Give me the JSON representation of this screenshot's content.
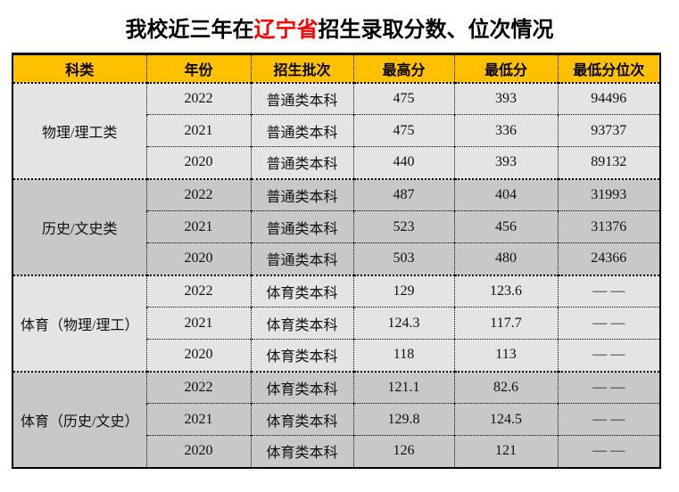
{
  "title": {
    "prefix": "我校近三年在",
    "highlight": "辽宁省",
    "suffix": "招生录取分数、位次情况"
  },
  "colors": {
    "header_bg": "#FFC000",
    "header_text": "#000000",
    "group_light_bg": "#E4E4E4",
    "group_dark_bg": "#C8C8C8",
    "border": "#000000",
    "title_highlight": "#FF0000"
  },
  "table": {
    "headers": [
      "科类",
      "年份",
      "招生批次",
      "最高分",
      "最低分",
      "最低分位次"
    ],
    "groups": [
      {
        "category": "物理/理工类",
        "rows": [
          {
            "year": "2022",
            "batch": "普通类本科",
            "max": "475",
            "min": "393",
            "rank": "94496"
          },
          {
            "year": "2021",
            "batch": "普通类本科",
            "max": "475",
            "min": "336",
            "rank": "93737"
          },
          {
            "year": "2020",
            "batch": "普通类本科",
            "max": "440",
            "min": "393",
            "rank": "89132"
          }
        ]
      },
      {
        "category": "历史/文史类",
        "rows": [
          {
            "year": "2022",
            "batch": "普通类本科",
            "max": "487",
            "min": "404",
            "rank": "31993"
          },
          {
            "year": "2021",
            "batch": "普通类本科",
            "max": "523",
            "min": "456",
            "rank": "31376"
          },
          {
            "year": "2020",
            "batch": "普通类本科",
            "max": "503",
            "min": "480",
            "rank": "24366"
          }
        ]
      },
      {
        "category": "体育（物理/理工）",
        "rows": [
          {
            "year": "2022",
            "batch": "体育类本科",
            "max": "129",
            "min": "123.6",
            "rank": "— —"
          },
          {
            "year": "2021",
            "batch": "体育类本科",
            "max": "124.3",
            "min": "117.7",
            "rank": "— —"
          },
          {
            "year": "2020",
            "batch": "体育类本科",
            "max": "118",
            "min": "113",
            "rank": "— —"
          }
        ]
      },
      {
        "category": "体育（历史/文史）",
        "rows": [
          {
            "year": "2022",
            "batch": "体育类本科",
            "max": "121.1",
            "min": "82.6",
            "rank": "— —"
          },
          {
            "year": "2021",
            "batch": "体育类本科",
            "max": "129.8",
            "min": "124.5",
            "rank": "— —"
          },
          {
            "year": "2020",
            "batch": "体育类本科",
            "max": "126",
            "min": "121",
            "rank": "— —"
          }
        ]
      }
    ]
  }
}
